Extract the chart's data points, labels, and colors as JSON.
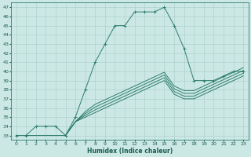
{
  "xlabel": "Humidex (Indice chaleur)",
  "ylabel": "",
  "bg_color": "#cce8e4",
  "line_color": "#2e7d6e",
  "grid_color": "#a8ccc8",
  "xlim": [
    -0.5,
    23.5
  ],
  "ylim": [
    32.5,
    47.5
  ],
  "yticks": [
    33,
    34,
    35,
    36,
    37,
    38,
    39,
    40,
    41,
    42,
    43,
    44,
    45,
    46,
    47
  ],
  "xticks": [
    0,
    1,
    2,
    3,
    4,
    5,
    6,
    7,
    8,
    9,
    10,
    11,
    12,
    13,
    14,
    15,
    16,
    17,
    18,
    19,
    20,
    21,
    22,
    23
  ],
  "main_x": [
    0,
    1,
    2,
    3,
    4,
    5,
    6,
    7,
    8,
    9,
    10,
    11,
    12,
    13,
    14,
    15,
    16,
    17,
    18,
    19,
    20,
    21,
    22,
    23
  ],
  "main_y": [
    33,
    33,
    34,
    34,
    34,
    33,
    35,
    38,
    41,
    43,
    45,
    45,
    46.5,
    46.5,
    46.5,
    47,
    45,
    42.5,
    39,
    39,
    39,
    39.5,
    40,
    40
  ],
  "band_lines": [
    [
      33,
      33,
      33,
      33,
      33,
      33,
      34.5,
      35.0,
      35.5,
      36.0,
      36.5,
      37.0,
      37.5,
      38.0,
      38.5,
      39.0,
      37.5,
      37.0,
      37.0,
      37.5,
      38.0,
      38.5,
      39.0,
      39.5
    ],
    [
      33,
      33,
      33,
      33,
      33,
      33,
      34.5,
      35.2,
      35.8,
      36.3,
      36.8,
      37.3,
      37.8,
      38.3,
      38.8,
      39.3,
      37.8,
      37.3,
      37.3,
      37.8,
      38.3,
      38.8,
      39.3,
      39.8
    ],
    [
      33,
      33,
      33,
      33,
      33,
      33,
      34.5,
      35.4,
      36.1,
      36.6,
      37.1,
      37.6,
      38.1,
      38.6,
      39.1,
      39.6,
      38.1,
      37.6,
      37.6,
      38.1,
      38.6,
      39.1,
      39.6,
      40.1
    ],
    [
      33,
      33,
      33,
      33,
      33,
      33,
      34.5,
      35.6,
      36.4,
      36.9,
      37.4,
      37.9,
      38.4,
      38.9,
      39.4,
      39.9,
      38.4,
      37.9,
      37.9,
      38.4,
      38.9,
      39.4,
      39.9,
      40.4
    ]
  ]
}
